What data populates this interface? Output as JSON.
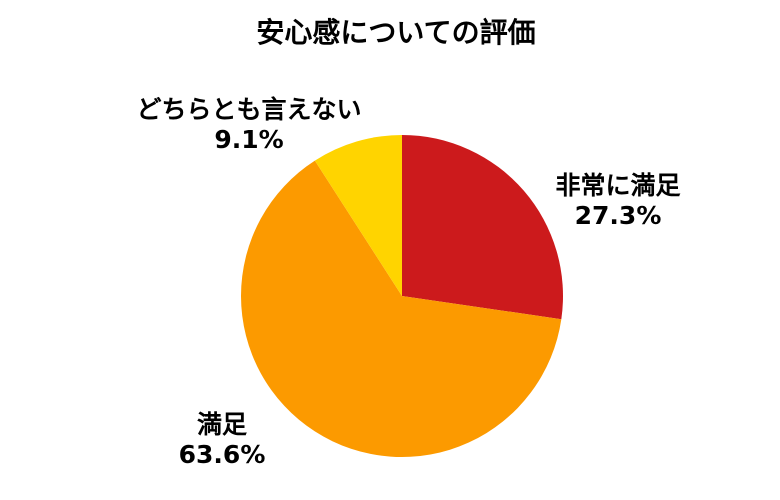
{
  "page": {
    "background": "#FFFFFF",
    "text_color": "#000000"
  },
  "chart_data": {
    "type": "pie",
    "title": "安心感についての評価",
    "start_angle": "top",
    "direction": "clockwise",
    "legend": "none",
    "background": "#FFFFFF",
    "text_color": "#000000",
    "slices": [
      {
        "label": "非常に満足",
        "value": 27.3,
        "pct_label": "27.3%",
        "color": "#CC1A1C",
        "label_position": "right"
      },
      {
        "label": "満足",
        "value": 63.6,
        "pct_label": "63.6%",
        "color": "#FC9A00",
        "label_position": "bottom-left"
      },
      {
        "label": "どちらとも言えない",
        "value": 9.1,
        "pct_label": "9.1%",
        "color": "#FFD400",
        "label_position": "top-left"
      }
    ]
  }
}
